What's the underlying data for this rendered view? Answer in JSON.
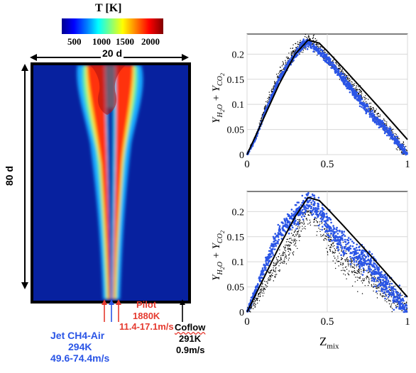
{
  "colorbar": {
    "title": "T [K]",
    "ticks": [
      "500",
      "1000",
      "1500",
      "2000"
    ],
    "colors": [
      "#00008f",
      "#0000ff",
      "#00ffff",
      "#ffff00",
      "#ff0000",
      "#800000"
    ]
  },
  "domain": {
    "width_label": "20 d",
    "height_label": "80 d"
  },
  "inlets": {
    "pilot": {
      "name": "Pilot",
      "temperature": "1880K",
      "velocity": "11.4-17.1m/s",
      "color": "#e53a2f"
    },
    "jet": {
      "name": "Jet CH4-Air",
      "temperature": "294K",
      "velocity": "49.6-74.4m/s",
      "color": "#2a55e6"
    },
    "coflow": {
      "name": "Coflow",
      "temperature": "291K",
      "velocity": "0.9m/s",
      "color": "#000000"
    }
  },
  "chart_data": [
    {
      "type": "scatter",
      "xlabel": "",
      "ylabel": "Y_{H2O} + Y_{CO2}",
      "xlim": [
        0,
        1
      ],
      "ylim": [
        0,
        0.24
      ],
      "xticks": [
        "0",
        "0.5",
        "1"
      ],
      "yticks": [
        "0",
        "0.05",
        "0.1",
        "0.15",
        "0.2"
      ],
      "grid": true,
      "series": [
        {
          "color": "#000000",
          "marker": "dot",
          "x": [
            0.05,
            0.12,
            0.2,
            0.28,
            0.35,
            0.4,
            0.5,
            0.6,
            0.7,
            0.8,
            0.9,
            0.97
          ],
          "y": [
            0.03,
            0.1,
            0.16,
            0.2,
            0.22,
            0.23,
            0.19,
            0.16,
            0.12,
            0.08,
            0.04,
            0.01
          ]
        },
        {
          "color": "#2a55e6",
          "marker": "dot",
          "x": [
            0.05,
            0.12,
            0.2,
            0.28,
            0.35,
            0.4,
            0.5,
            0.6,
            0.7,
            0.8,
            0.9,
            0.97
          ],
          "y": [
            0.03,
            0.09,
            0.15,
            0.19,
            0.22,
            0.22,
            0.19,
            0.15,
            0.11,
            0.07,
            0.04,
            0.01
          ]
        },
        {
          "color": "#000000",
          "marker": "line",
          "x": [
            0,
            0.1,
            0.2,
            0.3,
            0.38,
            0.45,
            0.5,
            0.6,
            0.7,
            0.8,
            0.9,
            1.0
          ],
          "y": [
            0,
            0.07,
            0.14,
            0.2,
            0.228,
            0.222,
            0.206,
            0.172,
            0.137,
            0.102,
            0.066,
            0.03
          ]
        }
      ]
    },
    {
      "type": "scatter",
      "xlabel": "Z_mix",
      "ylabel": "Y_{H2O} + Y_{CO2}",
      "xlim": [
        0,
        1
      ],
      "ylim": [
        0,
        0.24
      ],
      "xticks": [
        "0",
        "0.5",
        "1"
      ],
      "yticks": [
        "0",
        "0.05",
        "0.1",
        "0.15",
        "0.2"
      ],
      "grid": true,
      "series": [
        {
          "color": "#000000",
          "marker": "dot",
          "x": [
            0.05,
            0.12,
            0.2,
            0.3,
            0.38,
            0.45,
            0.55,
            0.65,
            0.75,
            0.85,
            0.95
          ],
          "y": [
            0.02,
            0.06,
            0.1,
            0.15,
            0.2,
            0.18,
            0.12,
            0.09,
            0.07,
            0.05,
            0.02
          ]
        },
        {
          "color": "#2a55e6",
          "marker": "dot",
          "x": [
            0.05,
            0.12,
            0.2,
            0.3,
            0.38,
            0.45,
            0.55,
            0.65,
            0.75,
            0.85,
            0.95
          ],
          "y": [
            0.04,
            0.1,
            0.16,
            0.19,
            0.22,
            0.2,
            0.15,
            0.12,
            0.1,
            0.06,
            0.02
          ]
        },
        {
          "color": "#000000",
          "marker": "line",
          "x": [
            0,
            0.1,
            0.2,
            0.3,
            0.38,
            0.45,
            0.5,
            0.6,
            0.7,
            0.8,
            0.9,
            1.0
          ],
          "y": [
            0,
            0.065,
            0.13,
            0.19,
            0.228,
            0.222,
            0.206,
            0.172,
            0.137,
            0.102,
            0.066,
            0.03
          ]
        }
      ]
    }
  ]
}
